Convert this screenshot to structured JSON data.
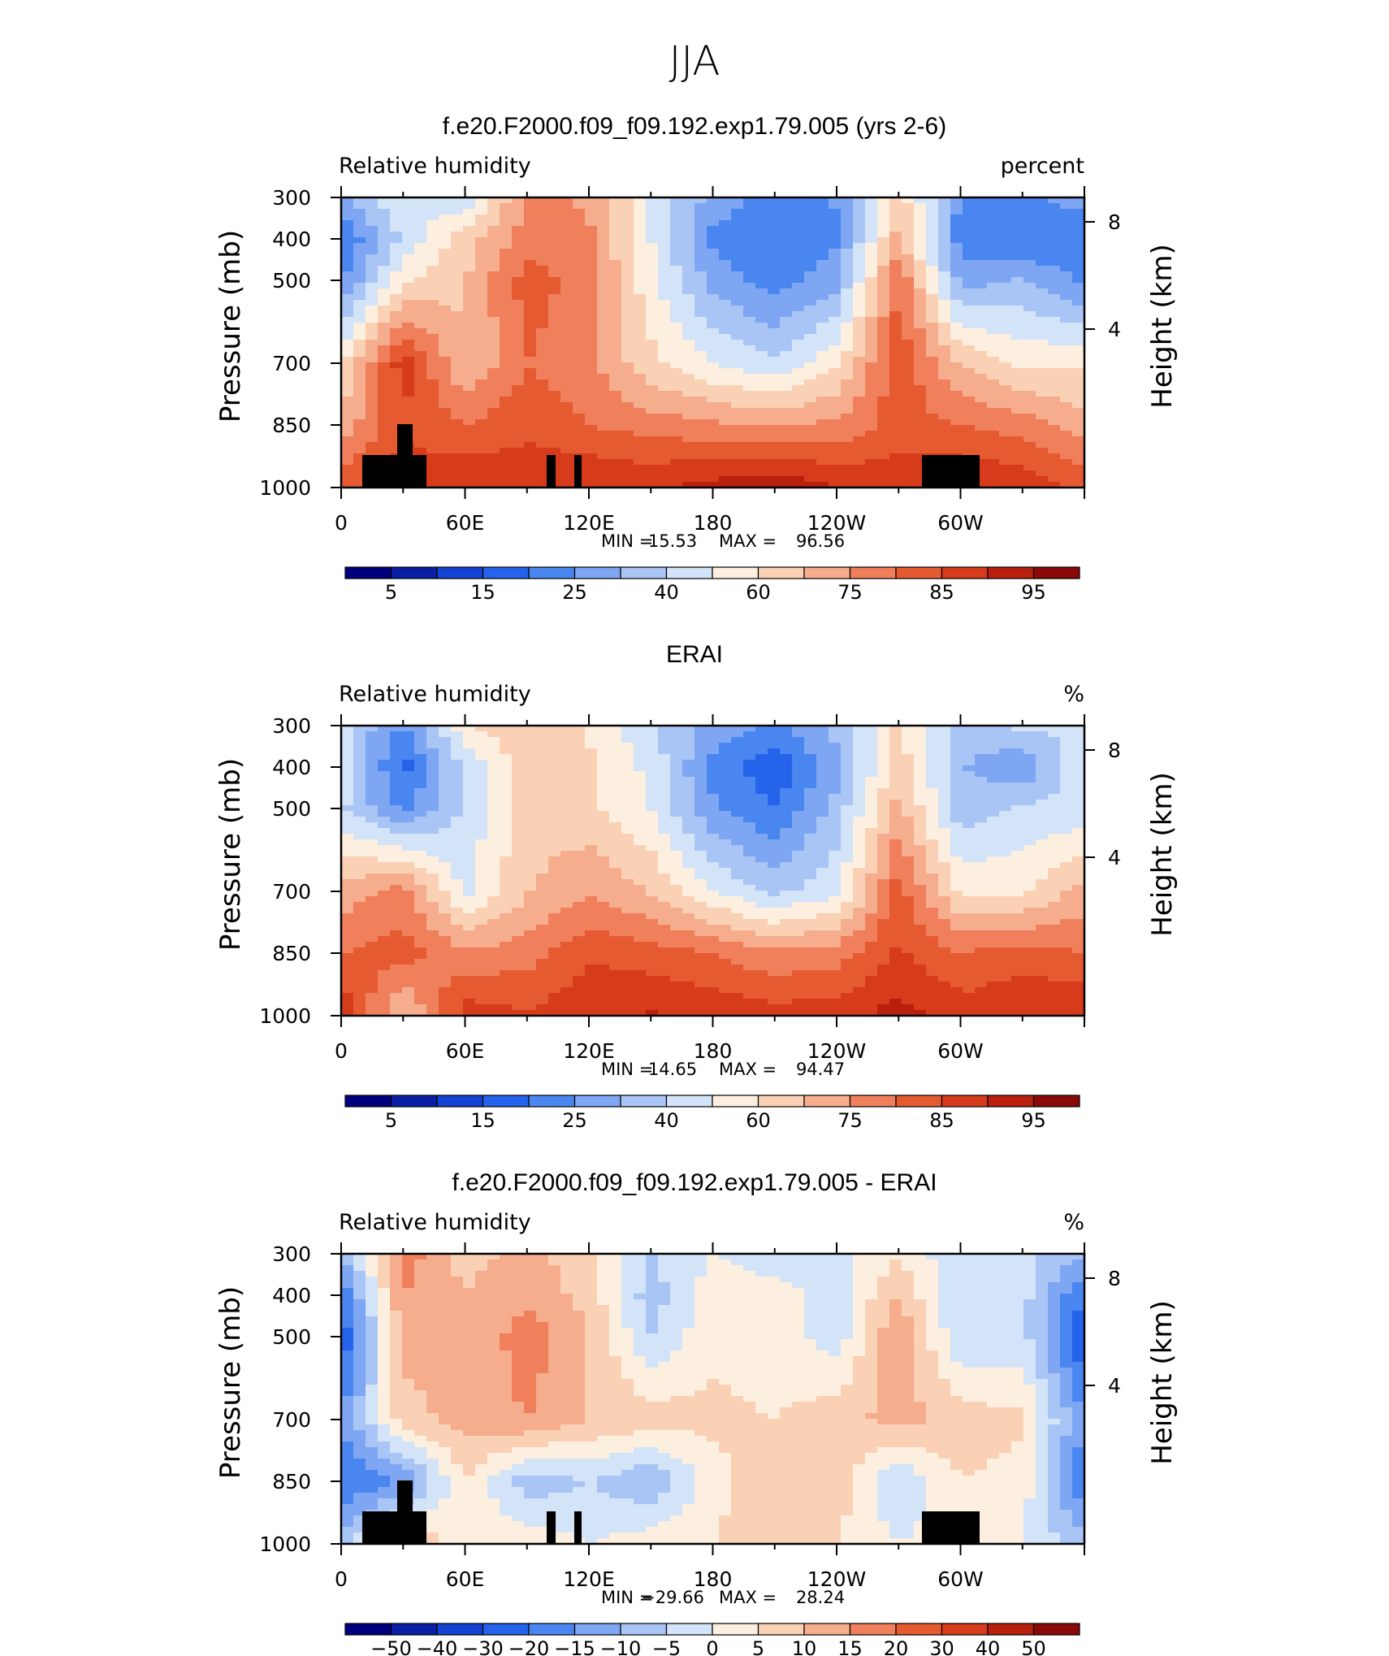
{
  "figure": {
    "title": "JJA"
  },
  "colors": {
    "abs_scale": [
      "#00007f",
      "#0a1ea6",
      "#1442d2",
      "#2563eb",
      "#4a86f0",
      "#7ea6f3",
      "#a9c5f5",
      "#d3e3f8",
      "#fdefdf",
      "#fbd1b6",
      "#f6ad8e",
      "#f07f5c",
      "#e65a31",
      "#d63b1b",
      "#b91f0d",
      "#8a0909"
    ],
    "diff_scale": [
      "#00007f",
      "#0a1ea6",
      "#1442d2",
      "#2563eb",
      "#4a86f0",
      "#7ea6f3",
      "#a9c5f5",
      "#d3e3f8",
      "#fdefdf",
      "#fbd1b6",
      "#f6ad8e",
      "#f07f5c",
      "#e65a31",
      "#d63b1b",
      "#b91f0d",
      "#8a0909"
    ]
  },
  "chart_data": [
    {
      "type": "heatmap",
      "title": "f.e20.F2000.f09_f09.192.exp1.79.005 (yrs 2-6)",
      "variable": "Relative humidity",
      "units": "percent",
      "ylabel": "Pressure (mb)",
      "ylabel_right": "Height (km)",
      "x_tick_labels": [
        "0",
        "60E",
        "120E",
        "180",
        "120W",
        "60W"
      ],
      "y_tick_labels": [
        "300",
        "400",
        "500",
        "700",
        "850",
        "1000"
      ],
      "height_ticks": [
        "8",
        "4"
      ],
      "stats": {
        "min_label": "MIN =",
        "min": "15.53",
        "max_label": "MAX =",
        "max": "96.56"
      },
      "colorbar_labels": [
        "5",
        "15",
        "25",
        "40",
        "60",
        "75",
        "85",
        "95"
      ],
      "x": [
        0,
        30,
        60,
        90,
        120,
        150,
        180,
        210,
        240,
        270,
        300,
        330
      ],
      "y": [
        300,
        400,
        500,
        700,
        850,
        1000
      ],
      "z": [
        [
          35,
          50,
          45,
          70,
          68,
          50,
          35,
          28,
          32,
          60,
          30,
          30
        ],
        [
          25,
          45,
          60,
          72,
          70,
          50,
          30,
          25,
          30,
          65,
          28,
          25
        ],
        [
          30,
          55,
          62,
          78,
          72,
          52,
          35,
          28,
          35,
          75,
          35,
          38
        ],
        [
          55,
          85,
          62,
          75,
          70,
          58,
          50,
          45,
          55,
          80,
          62,
          55
        ],
        [
          65,
          80,
          75,
          80,
          75,
          72,
          70,
          68,
          70,
          78,
          75,
          72
        ],
        [
          80,
          85,
          88,
          85,
          88,
          87,
          90,
          92,
          88,
          85,
          88,
          86
        ]
      ]
    },
    {
      "type": "heatmap",
      "title": "ERAI",
      "variable": "Relative humidity",
      "units": "%",
      "ylabel": "Pressure (mb)",
      "ylabel_right": "Height (km)",
      "x_tick_labels": [
        "0",
        "60E",
        "120E",
        "180",
        "120W",
        "60W"
      ],
      "y_tick_labels": [
        "300",
        "400",
        "500",
        "700",
        "850",
        "1000"
      ],
      "height_ticks": [
        "8",
        "4"
      ],
      "stats": {
        "min_label": "MIN =",
        "min": "14.65",
        "max_label": "MAX =",
        "max": "94.47"
      },
      "colorbar_labels": [
        "5",
        "15",
        "25",
        "40",
        "60",
        "75",
        "85",
        "95"
      ],
      "x": [
        0,
        30,
        60,
        90,
        120,
        150,
        180,
        210,
        240,
        270,
        300,
        330
      ],
      "y": [
        300,
        400,
        500,
        700,
        850,
        1000
      ],
      "z": [
        [
          45,
          30,
          55,
          62,
          55,
          45,
          35,
          30,
          40,
          58,
          40,
          45
        ],
        [
          50,
          22,
          45,
          60,
          58,
          48,
          30,
          20,
          35,
          60,
          38,
          32
        ],
        [
          45,
          30,
          45,
          60,
          58,
          50,
          32,
          25,
          40,
          65,
          40,
          45
        ],
        [
          65,
          72,
          48,
          62,
          68,
          62,
          50,
          42,
          48,
          78,
          55,
          55
        ],
        [
          75,
          78,
          70,
          72,
          80,
          78,
          75,
          70,
          72,
          82,
          75,
          78
        ],
        [
          88,
          60,
          85,
          82,
          87,
          88,
          86,
          84,
          85,
          90,
          85,
          87
        ]
      ]
    },
    {
      "type": "heatmap",
      "title": "f.e20.F2000.f09_f09.192.exp1.79.005 - ERAI",
      "variable": "Relative humidity",
      "units": "%",
      "ylabel": "Pressure (mb)",
      "ylabel_right": "Height (km)",
      "x_tick_labels": [
        "0",
        "60E",
        "120E",
        "180",
        "120W",
        "60W"
      ],
      "y_tick_labels": [
        "300",
        "400",
        "500",
        "700",
        "850",
        "1000"
      ],
      "height_ticks": [
        "8",
        "4"
      ],
      "stats": {
        "min_label": "MIN =",
        "min": "−29.66",
        "max_label": "MAX =",
        "max": "28.24"
      },
      "colorbar_labels": [
        "−50",
        "−40",
        "−30",
        "−20",
        "−15",
        "−10",
        "−5",
        "0",
        "5",
        "10",
        "15",
        "20",
        "30",
        "40",
        "50"
      ],
      "x": [
        0,
        30,
        60,
        90,
        120,
        150,
        180,
        210,
        240,
        270,
        300,
        330
      ],
      "y": [
        300,
        400,
        500,
        700,
        850,
        1000
      ],
      "z": [
        [
          -10,
          18,
          8,
          12,
          6,
          -5,
          0,
          -3,
          -3,
          5,
          -5,
          -3
        ],
        [
          -20,
          15,
          10,
          14,
          8,
          -8,
          3,
          2,
          -2,
          10,
          -5,
          -3
        ],
        [
          -25,
          12,
          10,
          18,
          10,
          -5,
          4,
          3,
          -3,
          15,
          -5,
          -3
        ],
        [
          -15,
          8,
          12,
          15,
          10,
          8,
          6,
          5,
          8,
          12,
          8,
          6
        ],
        [
          -20,
          -15,
          5,
          -8,
          -5,
          -10,
          3,
          10,
          8,
          -5,
          5,
          3
        ],
        [
          -8,
          10,
          3,
          3,
          0,
          3,
          5,
          8,
          5,
          0,
          3,
          0
        ]
      ]
    }
  ]
}
